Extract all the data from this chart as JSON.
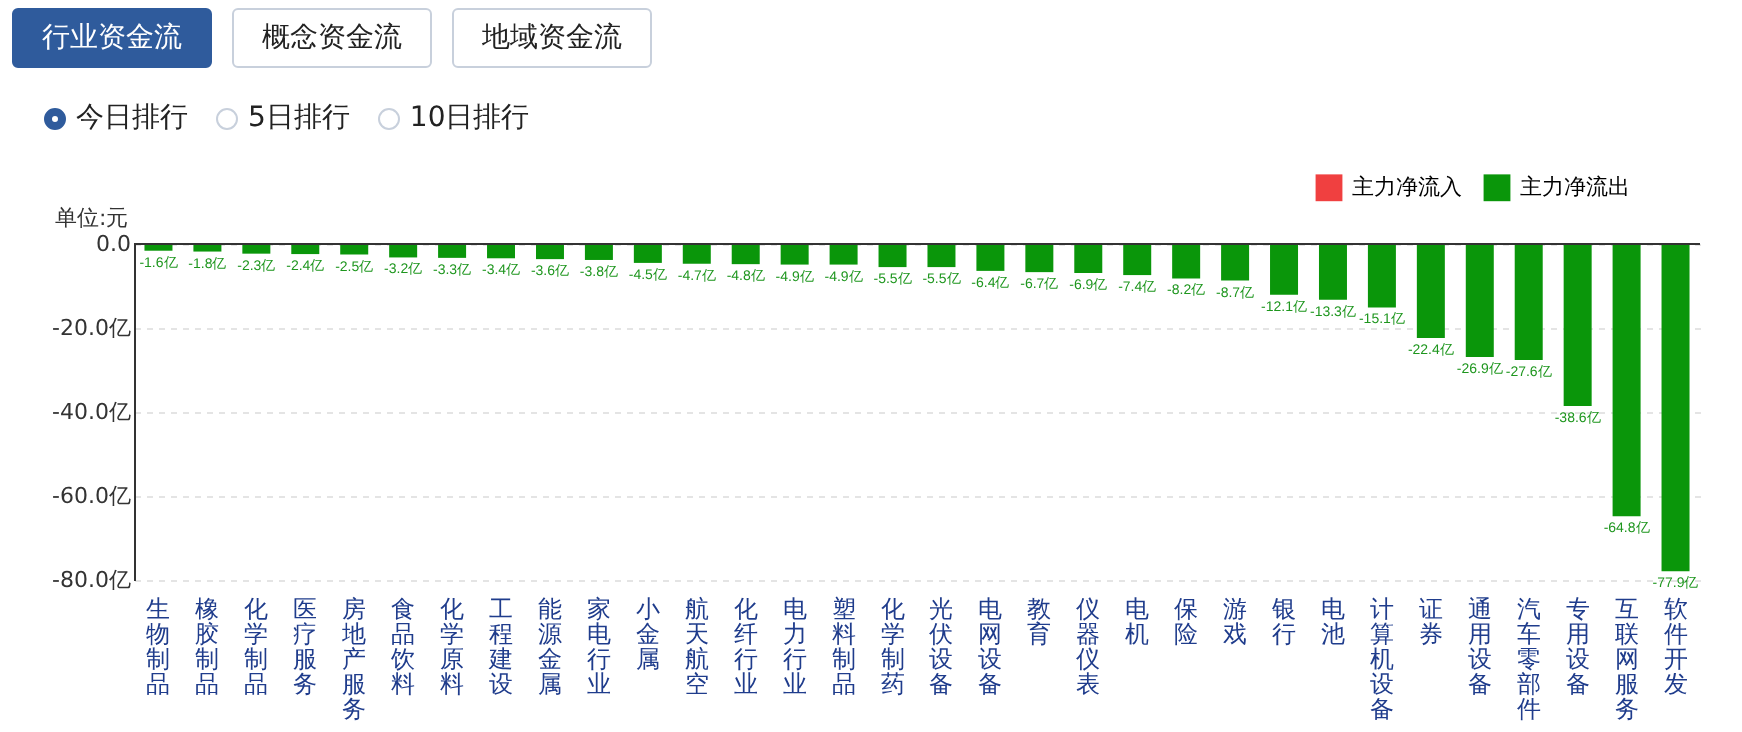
{
  "chart_data": {
    "type": "bar",
    "ylabel": "单位:元",
    "annotations": [
      "行业资金流",
      "概念资金流",
      "地域资金流",
      "今日排行",
      "5日排行",
      "10日排行"
    ],
    "categories": [
      "生物制品",
      "橡胶制品",
      "化学制品",
      "医疗服务",
      "房地产服务",
      "食品饮料",
      "化学原料",
      "工程建设",
      "能源金属",
      "家电行业",
      "小金属",
      "航天航空",
      "化纤行业",
      "电力行业",
      "塑料制品",
      "化学制药",
      "光伏设备",
      "电网设备",
      "教育",
      "仪器仪表",
      "电机",
      "保险",
      "游戏",
      "银行",
      "电池",
      "计算机设备",
      "证券",
      "通用设备",
      "汽车零部件",
      "专用设备",
      "互联网服务",
      "软件开发"
    ],
    "series": [
      {
        "name": "主力净流入",
        "color": "#f04040",
        "values": [
          null,
          null,
          null,
          null,
          null,
          null,
          null,
          null,
          null,
          null,
          null,
          null,
          null,
          null,
          null,
          null,
          null,
          null,
          null,
          null,
          null,
          null,
          null,
          null,
          null,
          null,
          null,
          null,
          null,
          null,
          null,
          null
        ]
      },
      {
        "name": "主力净流出",
        "color": "#0a960a",
        "values": [
          -1.6,
          -1.8,
          -2.3,
          -2.4,
          -2.5,
          -3.2,
          -3.3,
          -3.4,
          -3.6,
          -3.8,
          -4.5,
          -4.7,
          -4.8,
          -4.9,
          -4.9,
          -5.5,
          -5.5,
          -6.4,
          -6.7,
          -6.9,
          -7.4,
          -8.2,
          -8.7,
          -12.1,
          -13.3,
          -15.1,
          -22.4,
          -26.9,
          -27.6,
          -38.6,
          -64.8,
          -77.9
        ],
        "value_labels": [
          "-1.6亿",
          "-1.8亿",
          "-2.3亿",
          "-2.4亿",
          "-2.5亿",
          "-3.2亿",
          "-3.3亿",
          "-3.4亿",
          "-3.6亿",
          "-3.8亿",
          "-4.5亿",
          "-4.7亿",
          "-4.8亿",
          "-4.9亿",
          "-4.9亿",
          "-5.5亿",
          "-5.5亿",
          "-6.4亿",
          "-6.7亿",
          "-6.9亿",
          "-7.4亿",
          "-8.2亿",
          "-8.7亿",
          "-12.1亿",
          "-13.3亿",
          "-15.1亿",
          "-22.4亿",
          "-26.9亿",
          "-27.6亿",
          "-38.6亿",
          "-64.8亿",
          "-77.9亿"
        ]
      }
    ],
    "ylim": [
      -80,
      0
    ],
    "yticks": [
      {
        "value": 0,
        "label": "0.0"
      },
      {
        "value": -20,
        "label": "-20.0亿"
      },
      {
        "value": -40,
        "label": "-40.0亿"
      },
      {
        "value": -60,
        "label": "-60.0亿"
      },
      {
        "value": -80,
        "label": "-80.0亿"
      }
    ],
    "grid": "y",
    "legend": "top right"
  }
}
